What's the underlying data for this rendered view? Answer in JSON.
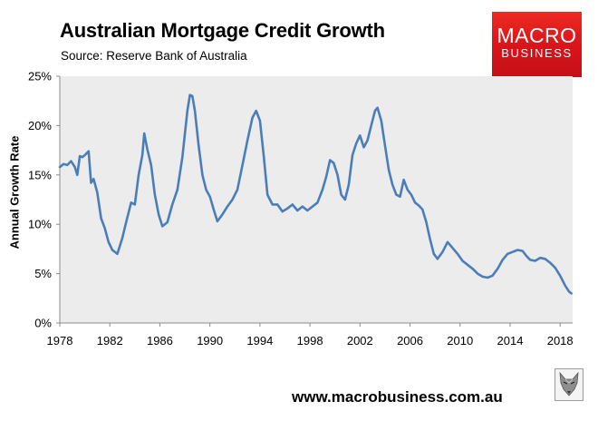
{
  "header": {
    "title": "Australian Mortgage Credit Growth",
    "subtitle": "Source: Reserve Bank of Australia"
  },
  "logo": {
    "line1": "MACRO",
    "line2": "BUSINESS",
    "color": "#d7141a"
  },
  "footer": {
    "url": "www.macrobusiness.com.au",
    "icon": "fox-icon"
  },
  "chart_data": {
    "type": "line",
    "title": "Australian Mortgage Credit Growth",
    "subtitle": "Source: Reserve Bank of Australia",
    "xlabel": "",
    "ylabel": "Annual Growth Rate",
    "xlim": [
      1978,
      2019
    ],
    "ylim": [
      0,
      25
    ],
    "x_ticks": [
      "1978",
      "1982",
      "1986",
      "1990",
      "1994",
      "1998",
      "2002",
      "2006",
      "2010",
      "2014",
      "2018"
    ],
    "y_ticks": [
      "0%",
      "5%",
      "10%",
      "15%",
      "20%",
      "25%"
    ],
    "y_tick_values": [
      0,
      5,
      10,
      15,
      20,
      25
    ],
    "x_tick_values": [
      1978,
      1982,
      1986,
      1990,
      1994,
      1998,
      2002,
      2006,
      2010,
      2014,
      2018
    ],
    "grid": false,
    "legend": "none",
    "plot_background": "#ececec",
    "series": [
      {
        "color": "#4a7ebb",
        "x": [
          1978.0,
          1978.3,
          1978.6,
          1978.9,
          1979.2,
          1979.4,
          1979.6,
          1979.8,
          1980.0,
          1980.3,
          1980.5,
          1980.7,
          1981.0,
          1981.3,
          1981.6,
          1981.9,
          1982.2,
          1982.6,
          1983.0,
          1983.3,
          1983.7,
          1984.0,
          1984.3,
          1984.6,
          1984.75,
          1985.0,
          1985.3,
          1985.6,
          1985.9,
          1986.2,
          1986.6,
          1987.0,
          1987.4,
          1987.8,
          1988.2,
          1988.4,
          1988.6,
          1988.8,
          1989.1,
          1989.4,
          1989.7,
          1990.0,
          1990.3,
          1990.6,
          1991.0,
          1991.4,
          1991.8,
          1992.2,
          1992.6,
          1993.0,
          1993.4,
          1993.7,
          1994.0,
          1994.3,
          1994.6,
          1995.0,
          1995.4,
          1995.8,
          1996.2,
          1996.6,
          1997.0,
          1997.4,
          1997.8,
          1998.2,
          1998.6,
          1999.0,
          1999.3,
          1999.6,
          1999.9,
          2000.2,
          2000.5,
          2000.8,
          2001.1,
          2001.4,
          2001.7,
          2002.0,
          2002.3,
          2002.6,
          2002.9,
          2003.2,
          2003.4,
          2003.7,
          2004.0,
          2004.3,
          2004.6,
          2004.9,
          2005.2,
          2005.5,
          2005.8,
          2006.1,
          2006.4,
          2006.7,
          2007.0,
          2007.3,
          2007.6,
          2007.9,
          2008.2,
          2008.6,
          2009.0,
          2009.4,
          2009.8,
          2010.2,
          2010.6,
          2011.0,
          2011.4,
          2011.8,
          2012.2,
          2012.6,
          2013.0,
          2013.4,
          2013.8,
          2014.2,
          2014.6,
          2015.0,
          2015.3,
          2015.6,
          2016.0,
          2016.4,
          2016.8,
          2017.2,
          2017.6,
          2018.0,
          2018.4,
          2018.7,
          2018.9
        ],
        "y": [
          15.8,
          16.1,
          16.0,
          16.4,
          15.8,
          15.0,
          16.9,
          16.8,
          17.0,
          17.4,
          14.2,
          14.6,
          13.2,
          10.6,
          9.6,
          8.2,
          7.4,
          7.0,
          8.6,
          10.2,
          12.2,
          12.0,
          15.0,
          17.0,
          19.2,
          17.6,
          16.0,
          13.0,
          11.0,
          9.8,
          10.2,
          12.0,
          13.5,
          16.8,
          21.5,
          23.1,
          23.0,
          21.5,
          18.0,
          15.0,
          13.5,
          12.8,
          11.5,
          10.3,
          11.0,
          11.8,
          12.5,
          13.5,
          16.0,
          18.5,
          20.8,
          21.5,
          20.5,
          17.0,
          13.0,
          12.0,
          12.0,
          11.3,
          11.6,
          12.0,
          11.4,
          11.8,
          11.4,
          11.8,
          12.2,
          13.5,
          14.8,
          16.5,
          16.2,
          15.0,
          13.0,
          12.5,
          14.0,
          17.0,
          18.2,
          19.0,
          17.8,
          18.5,
          20.0,
          21.5,
          21.8,
          20.5,
          18.0,
          15.5,
          14.0,
          13.0,
          12.8,
          14.5,
          13.5,
          13.0,
          12.2,
          11.9,
          11.5,
          10.2,
          8.5,
          7.0,
          6.5,
          7.2,
          8.2,
          7.6,
          7.0,
          6.3,
          5.9,
          5.5,
          5.0,
          4.7,
          4.6,
          4.8,
          5.5,
          6.4,
          7.0,
          7.2,
          7.4,
          7.3,
          6.8,
          6.4,
          6.3,
          6.6,
          6.5,
          6.1,
          5.6,
          4.8,
          3.8,
          3.2,
          3.0
        ]
      }
    ]
  }
}
